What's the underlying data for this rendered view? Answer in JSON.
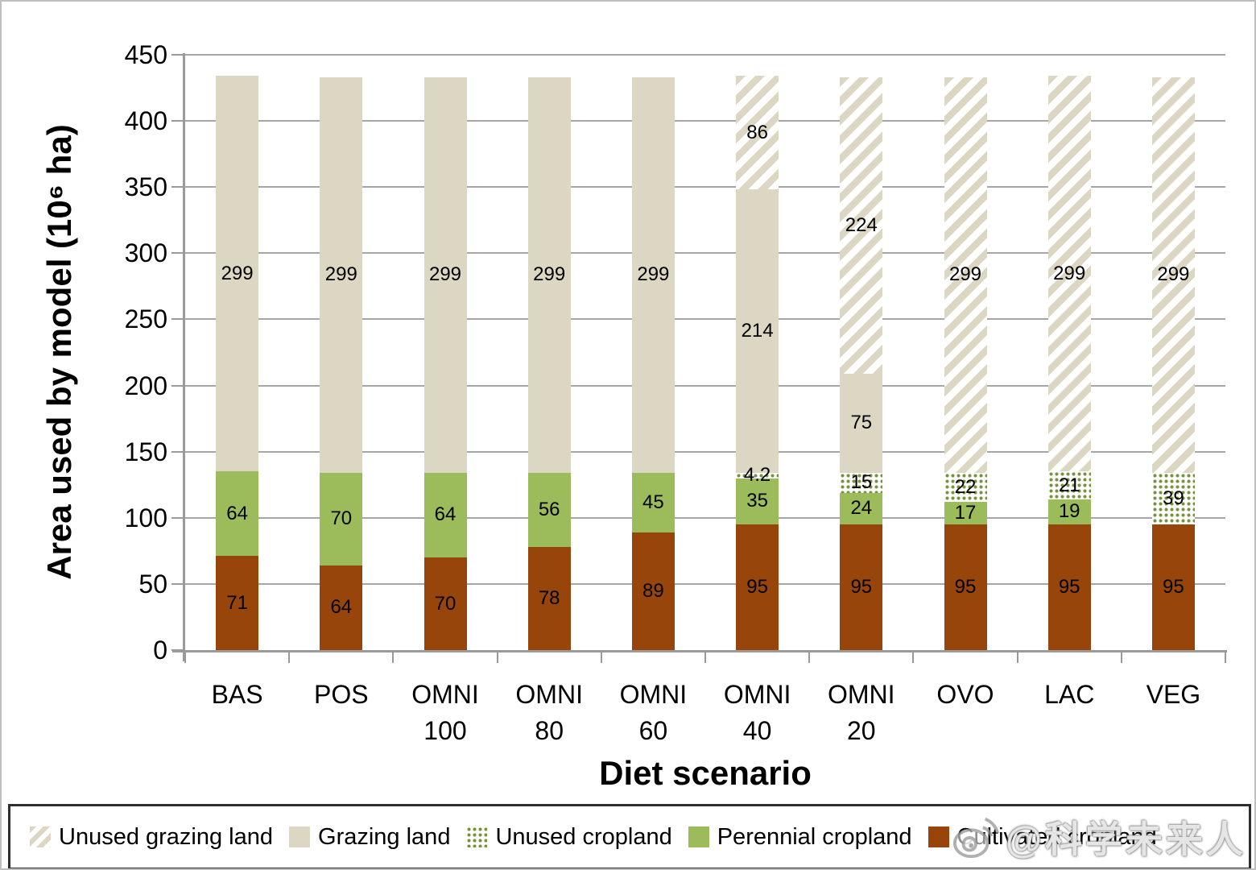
{
  "figure": {
    "y_axis_title": "Area used by model (10⁶ ha)",
    "x_axis_title": "Diet scenario",
    "watermark_text": "@科学未来人"
  },
  "chart_data": {
    "type": "bar",
    "stacked": true,
    "title": "",
    "xlabel": "Diet scenario",
    "ylabel": "Area used by model (10⁶ ha)",
    "ylim": [
      0,
      450
    ],
    "yticks": [
      0,
      50,
      100,
      150,
      200,
      250,
      300,
      350,
      400,
      450
    ],
    "grid": true,
    "categories": [
      "BAS",
      "POS",
      "OMNI 100",
      "OMNI 80",
      "OMNI 60",
      "OMNI 40",
      "OMNI 20",
      "OVO",
      "LAC",
      "VEG"
    ],
    "categories_display": [
      [
        "BAS"
      ],
      [
        "POS"
      ],
      [
        "OMNI",
        "100"
      ],
      [
        "OMNI",
        "80"
      ],
      [
        "OMNI",
        "60"
      ],
      [
        "OMNI",
        "40"
      ],
      [
        "OMNI",
        "20"
      ],
      [
        "OVO"
      ],
      [
        "LAC"
      ],
      [
        "VEG"
      ]
    ],
    "series": [
      {
        "name": "Cultivated cropland",
        "pattern": "solid",
        "color": "#97450A",
        "values": [
          71,
          64,
          70,
          78,
          89,
          95,
          95,
          95,
          95,
          95
        ]
      },
      {
        "name": "Perennial cropland",
        "pattern": "solid",
        "color": "#9CBB5A",
        "values": [
          64,
          70,
          64,
          56,
          45,
          35,
          24,
          17,
          19,
          0
        ]
      },
      {
        "name": "Unused cropland",
        "pattern": "dots",
        "color": "#76923C",
        "values": [
          0,
          0,
          0,
          0,
          0,
          4.2,
          15,
          22,
          21,
          39
        ]
      },
      {
        "name": "Grazing land",
        "pattern": "solid",
        "color": "#DCD7C2",
        "values": [
          299,
          299,
          299,
          299,
          299,
          214,
          75,
          0,
          0,
          0
        ]
      },
      {
        "name": "Unused grazing land",
        "pattern": "hatch",
        "color": "#DCD7C2",
        "values": [
          0,
          0,
          0,
          0,
          0,
          86,
          224,
          299,
          299,
          299
        ]
      }
    ],
    "legend": {
      "position": "bottom",
      "items": [
        {
          "label": "Unused grazing land",
          "swatch": "hatch",
          "color": "#DCD7C2"
        },
        {
          "label": "Grazing land",
          "swatch": "solid",
          "color": "#DCD7C2"
        },
        {
          "label": "Unused cropland",
          "swatch": "dots",
          "color": "#76923C"
        },
        {
          "label": "Perennial cropland",
          "swatch": "solid",
          "color": "#9CBB5A"
        },
        {
          "label": "Cultivated cropland",
          "swatch": "solid",
          "color": "#97450A"
        }
      ]
    },
    "colors": {
      "grazing_tan": "#DCD7C2",
      "perennial_green": "#9CBB5A",
      "cultivated_brown": "#97450A",
      "unused_cropland_olive": "#76923C",
      "gridline_gray": "#A6A6A6"
    }
  }
}
